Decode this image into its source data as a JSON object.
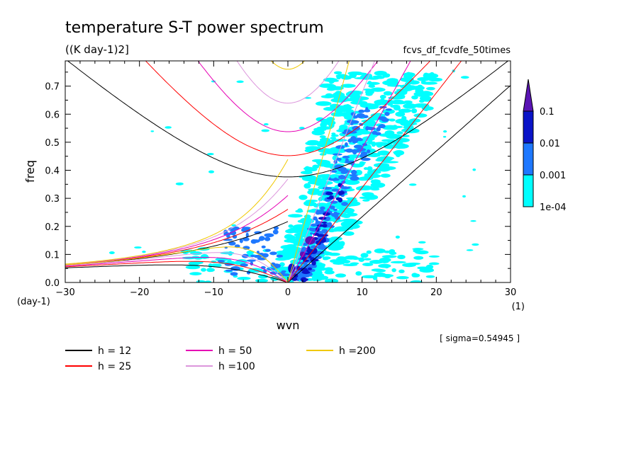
{
  "chart_data": {
    "type": "heatmap",
    "title": "temperature S-T power spectrum",
    "units": "((K day-1)2]",
    "run_name": "fcvs_df_fcvdfe_50times",
    "xlabel": "wvn",
    "ylabel": "freq",
    "x_unit": "(1)",
    "y_unit": "(day-1)",
    "xlim": [
      -30,
      30
    ],
    "ylim": [
      0,
      0.79
    ],
    "xticks": [
      "−30",
      "−20",
      "−10",
      "0",
      "10",
      "20",
      "30"
    ],
    "yticks": [
      "0.0",
      "0.1",
      "0.2",
      "0.3",
      "0.4",
      "0.5",
      "0.6",
      "0.7"
    ],
    "sigma_note": "[ sigma=0.54945 ]",
    "colorbar": {
      "levels": [
        "1e-04",
        "0.001",
        "0.01",
        "0.1"
      ],
      "colors": [
        "#00ffff",
        "#1e78ff",
        "#0a14c8",
        "#5a14b4"
      ]
    },
    "dispersion_curves": [
      {
        "label": "h = 12",
        "h": 12,
        "color": "#000000"
      },
      {
        "label": "h = 25",
        "h": 25,
        "color": "#ff0000"
      },
      {
        "label": "h = 50",
        "h": 50,
        "color": "#e600b4"
      },
      {
        "label": "h =100",
        "h": 100,
        "color": "#dc96dc"
      },
      {
        "label": "h =200",
        "h": 200,
        "color": "#f0c800"
      }
    ]
  }
}
